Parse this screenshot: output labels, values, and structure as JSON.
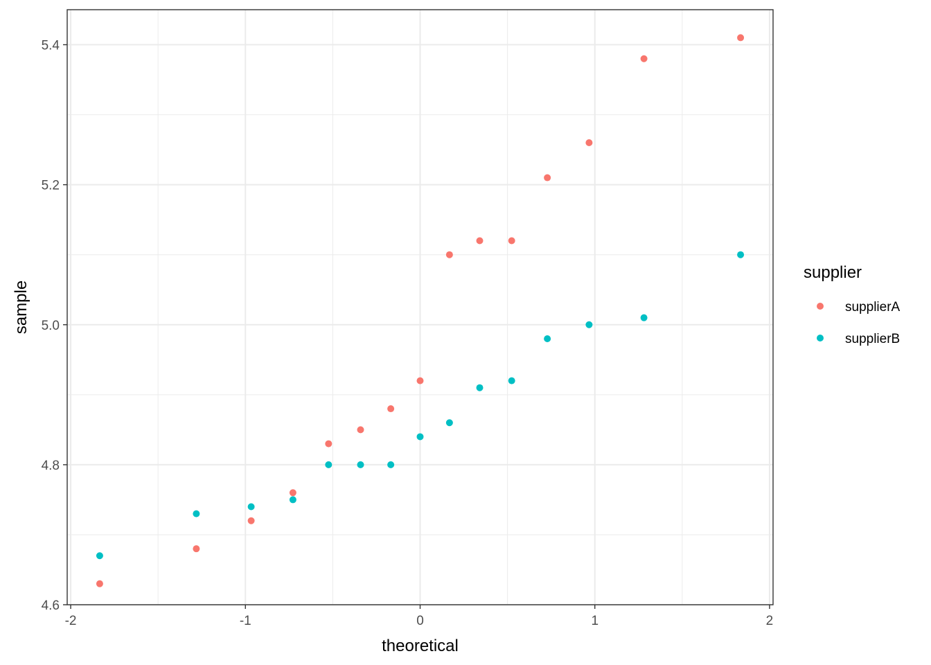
{
  "chart_data": {
    "type": "scatter",
    "xlabel": "theoretical",
    "ylabel": "sample",
    "xlim": [
      -2.02,
      2.02
    ],
    "ylim": [
      4.6,
      5.45
    ],
    "x_ticks": [
      -2,
      -1,
      0,
      1,
      2
    ],
    "x_tick_labels": [
      "-2",
      "-1",
      "0",
      "1",
      "2"
    ],
    "y_ticks": [
      4.6,
      4.8,
      5.0,
      5.2,
      5.4
    ],
    "y_tick_labels": [
      "4.6",
      "4.8",
      "5.0",
      "5.2",
      "5.4"
    ],
    "grid": true,
    "legend": {
      "title": "supplier",
      "position": "right"
    },
    "series": [
      {
        "name": "supplierA",
        "color": "#F8766D",
        "points": [
          {
            "x": -1.834,
            "y": 4.63
          },
          {
            "x": -1.281,
            "y": 4.68
          },
          {
            "x": -0.967,
            "y": 4.72
          },
          {
            "x": -0.728,
            "y": 4.76
          },
          {
            "x": -0.524,
            "y": 4.83
          },
          {
            "x": -0.341,
            "y": 4.85
          },
          {
            "x": -0.168,
            "y": 4.88
          },
          {
            "x": 0.0,
            "y": 4.92
          },
          {
            "x": 0.168,
            "y": 5.1
          },
          {
            "x": 0.341,
            "y": 5.12
          },
          {
            "x": 0.524,
            "y": 5.12
          },
          {
            "x": 0.728,
            "y": 5.21
          },
          {
            "x": 0.967,
            "y": 5.26
          },
          {
            "x": 1.281,
            "y": 5.38
          },
          {
            "x": 1.834,
            "y": 5.41
          }
        ]
      },
      {
        "name": "supplierB",
        "color": "#00BFC4",
        "points": [
          {
            "x": -1.834,
            "y": 4.67
          },
          {
            "x": -1.281,
            "y": 4.73
          },
          {
            "x": -0.967,
            "y": 4.74
          },
          {
            "x": -0.728,
            "y": 4.75
          },
          {
            "x": -0.524,
            "y": 4.8
          },
          {
            "x": -0.341,
            "y": 4.8
          },
          {
            "x": -0.168,
            "y": 4.8
          },
          {
            "x": 0.0,
            "y": 4.84
          },
          {
            "x": 0.168,
            "y": 4.86
          },
          {
            "x": 0.341,
            "y": 4.91
          },
          {
            "x": 0.524,
            "y": 4.92
          },
          {
            "x": 0.728,
            "y": 4.98
          },
          {
            "x": 0.967,
            "y": 5.0
          },
          {
            "x": 1.281,
            "y": 5.01
          },
          {
            "x": 1.834,
            "y": 5.1
          }
        ]
      }
    ]
  }
}
